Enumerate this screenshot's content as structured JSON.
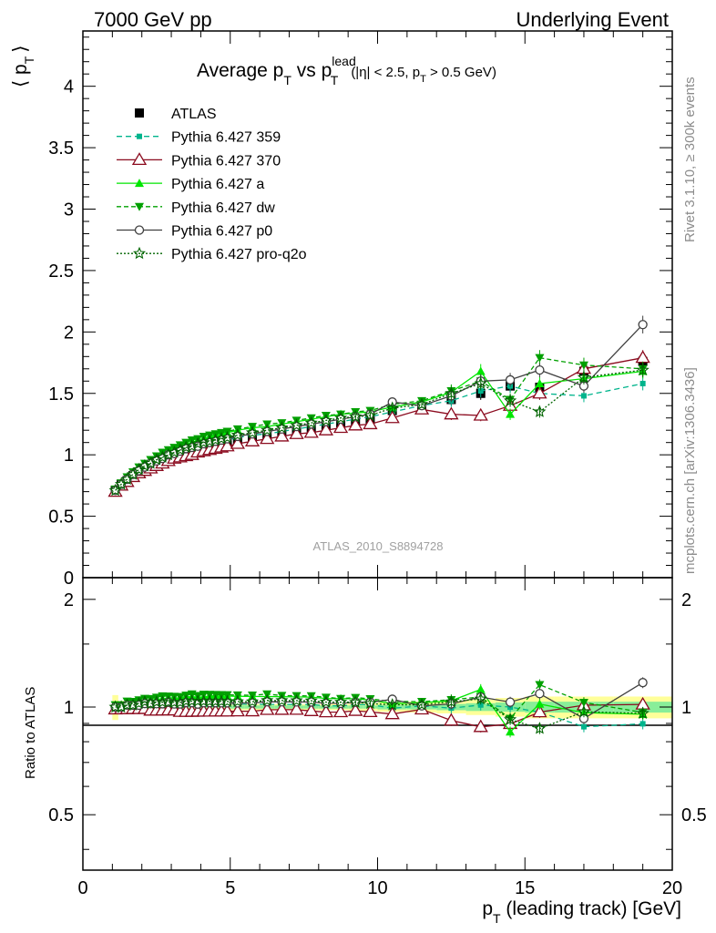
{
  "header": {
    "left": "7000 GeV pp",
    "right": "Underlying Event"
  },
  "plot_title": {
    "main": "Average p",
    "main_sub": "T",
    "vs": " vs p",
    "vs_sup": "lead",
    "vs_sub": "T",
    "cuts_a": "(|η| < 2.5, p",
    "cuts_sub": "T",
    "cuts_b": " > 0.5 GeV)"
  },
  "side_texts": {
    "rivet": "Rivet 3.1.10, ≥ 300k events",
    "mcplots": "mcplots.cern.ch [arXiv:1306.3436]"
  },
  "analysis_label": "ATLAS_2010_S8894728",
  "ylabel_top": {
    "open": "⟨ p",
    "sub": "T",
    "close": "⟩"
  },
  "ylabel_bottom": "Ratio to ATLAS",
  "xlabel": {
    "pre": "p",
    "sub": "T",
    "post": " (leading track) [GeV]"
  },
  "colors": {
    "ATLAS": "#000000",
    "359": "#00b48c",
    "370": "#8b0a1e",
    "a": "#00e600",
    "dw": "#00a000",
    "p0": "#404040",
    "pro-q2o": "#006400",
    "band_outer": "#ffff99",
    "band_inner": "#88ee99"
  },
  "chart_data": [
    {
      "type": "scatter",
      "panel": "main",
      "xlim": [
        0,
        20
      ],
      "ylim": [
        0,
        4.45
      ],
      "x_ticks": [
        0,
        5,
        10,
        15,
        20
      ],
      "x_tick_labels": [
        "0",
        "5",
        "10",
        "15",
        "20"
      ],
      "y_ticks": [
        0,
        0.5,
        1,
        1.5,
        2,
        2.5,
        3,
        3.5,
        4
      ],
      "y_tick_labels": [
        "0",
        "0.5",
        "1",
        "1.5",
        "2",
        "2.5",
        "3",
        "3.5",
        "4"
      ],
      "legend_position": "top-left",
      "x": [
        1.1,
        1.3,
        1.5,
        1.7,
        1.9,
        2.1,
        2.3,
        2.5,
        2.7,
        2.9,
        3.1,
        3.3,
        3.5,
        3.7,
        3.9,
        4.1,
        4.3,
        4.5,
        4.7,
        4.9,
        5.25,
        5.75,
        6.25,
        6.75,
        7.25,
        7.75,
        8.25,
        8.75,
        9.25,
        9.75,
        10.5,
        11.5,
        12.5,
        13.5,
        14.5,
        15.5,
        17.0,
        19.0
      ],
      "series": [
        {
          "name": "ATLAS",
          "marker": "square",
          "values": [
            0.71,
            0.76,
            0.79,
            0.83,
            0.86,
            0.88,
            0.91,
            0.93,
            0.95,
            0.97,
            0.99,
            1.01,
            1.02,
            1.03,
            1.05,
            1.06,
            1.07,
            1.08,
            1.09,
            1.1,
            1.12,
            1.14,
            1.15,
            1.17,
            1.19,
            1.21,
            1.24,
            1.26,
            1.27,
            1.29,
            1.36,
            1.39,
            1.45,
            1.5,
            1.56,
            1.55,
            1.68,
            1.76
          ]
        },
        {
          "name": "Pythia 6.427 359",
          "marker": "small-square",
          "values": [
            0.71,
            0.76,
            0.8,
            0.84,
            0.87,
            0.89,
            0.92,
            0.94,
            0.96,
            0.99,
            1.0,
            1.02,
            1.04,
            1.05,
            1.06,
            1.08,
            1.09,
            1.1,
            1.11,
            1.12,
            1.14,
            1.16,
            1.17,
            1.19,
            1.21,
            1.23,
            1.25,
            1.27,
            1.29,
            1.31,
            1.35,
            1.4,
            1.44,
            1.52,
            1.56,
            1.5,
            1.48,
            1.58
          ]
        },
        {
          "name": "Pythia 6.427 370",
          "marker": "open-triangle",
          "values": [
            0.7,
            0.75,
            0.78,
            0.82,
            0.85,
            0.87,
            0.89,
            0.91,
            0.93,
            0.95,
            0.97,
            0.98,
            0.99,
            1.0,
            1.02,
            1.03,
            1.04,
            1.05,
            1.06,
            1.07,
            1.09,
            1.11,
            1.13,
            1.15,
            1.17,
            1.18,
            1.2,
            1.22,
            1.24,
            1.25,
            1.3,
            1.37,
            1.33,
            1.32,
            1.4,
            1.5,
            1.7,
            1.79
          ]
        },
        {
          "name": "Pythia 6.427 a",
          "marker": "triangle",
          "values": [
            0.72,
            0.77,
            0.81,
            0.85,
            0.89,
            0.92,
            0.95,
            0.98,
            1.0,
            1.03,
            1.05,
            1.07,
            1.09,
            1.1,
            1.12,
            1.13,
            1.15,
            1.16,
            1.17,
            1.18,
            1.2,
            1.22,
            1.23,
            1.25,
            1.27,
            1.29,
            1.31,
            1.33,
            1.34,
            1.35,
            1.39,
            1.43,
            1.51,
            1.68,
            1.33,
            1.58,
            1.62,
            1.68
          ]
        },
        {
          "name": "Pythia 6.427 dw",
          "marker": "down-triangle",
          "values": [
            0.72,
            0.77,
            0.82,
            0.86,
            0.9,
            0.93,
            0.96,
            0.99,
            1.02,
            1.04,
            1.06,
            1.08,
            1.1,
            1.12,
            1.13,
            1.15,
            1.16,
            1.17,
            1.18,
            1.19,
            1.21,
            1.23,
            1.25,
            1.26,
            1.28,
            1.3,
            1.32,
            1.33,
            1.35,
            1.36,
            1.41,
            1.44,
            1.52,
            1.6,
            1.45,
            1.79,
            1.73,
            1.7
          ]
        },
        {
          "name": "Pythia 6.427 p0",
          "marker": "open-circle",
          "values": [
            0.71,
            0.76,
            0.8,
            0.84,
            0.87,
            0.9,
            0.93,
            0.95,
            0.97,
            1.0,
            1.01,
            1.03,
            1.05,
            1.06,
            1.07,
            1.09,
            1.1,
            1.11,
            1.12,
            1.13,
            1.15,
            1.17,
            1.19,
            1.21,
            1.23,
            1.25,
            1.27,
            1.29,
            1.31,
            1.33,
            1.43,
            1.4,
            1.48,
            1.6,
            1.61,
            1.69,
            1.56,
            2.06
          ]
        },
        {
          "name": "Pythia 6.427 pro-q2o",
          "marker": "open-star",
          "values": [
            0.71,
            0.76,
            0.8,
            0.84,
            0.88,
            0.91,
            0.93,
            0.96,
            0.98,
            1.0,
            1.02,
            1.04,
            1.06,
            1.07,
            1.09,
            1.1,
            1.11,
            1.12,
            1.13,
            1.14,
            1.16,
            1.18,
            1.2,
            1.22,
            1.24,
            1.26,
            1.28,
            1.3,
            1.31,
            1.32,
            1.38,
            1.41,
            1.5,
            1.58,
            1.44,
            1.35,
            1.63,
            1.69
          ]
        }
      ]
    },
    {
      "type": "scatter",
      "panel": "ratio",
      "ylabel": "Ratio to ATLAS",
      "xlim": [
        0,
        20
      ],
      "ylim": [
        0.35,
        2.3
      ],
      "y_ticks": [
        0.5,
        1,
        2
      ],
      "y_tick_labels": [
        "0.5",
        "1",
        "2"
      ],
      "band": {
        "x_edges": [
          1.0,
          1.2,
          1.4,
          1.6,
          1.8,
          2.0,
          2.2,
          2.4,
          2.6,
          2.8,
          3.0,
          3.2,
          3.4,
          3.6,
          3.8,
          4.0,
          4.2,
          4.4,
          4.6,
          4.8,
          5.0,
          5.5,
          6.0,
          6.5,
          7.0,
          7.5,
          8.0,
          8.5,
          9.0,
          9.5,
          10.0,
          11.0,
          12.0,
          13.0,
          14.0,
          15.0,
          16.0,
          18.0,
          20.0
        ],
        "outer_halfwidth": [
          0.08,
          0.04,
          0.03,
          0.025,
          0.02,
          0.02,
          0.02,
          0.02,
          0.02,
          0.02,
          0.02,
          0.02,
          0.02,
          0.02,
          0.02,
          0.02,
          0.02,
          0.02,
          0.02,
          0.02,
          0.02,
          0.02,
          0.02,
          0.02,
          0.02,
          0.02,
          0.02,
          0.02,
          0.025,
          0.025,
          0.03,
          0.035,
          0.04,
          0.05,
          0.06,
          0.07,
          0.07,
          0.07
        ],
        "inner_halfwidth": [
          0.03,
          0.015,
          0.01,
          0.01,
          0.01,
          0.01,
          0.01,
          0.01,
          0.01,
          0.01,
          0.01,
          0.01,
          0.01,
          0.01,
          0.01,
          0.01,
          0.01,
          0.01,
          0.01,
          0.01,
          0.01,
          0.01,
          0.01,
          0.01,
          0.01,
          0.01,
          0.01,
          0.01,
          0.01,
          0.01,
          0.015,
          0.015,
          0.02,
          0.025,
          0.03,
          0.035,
          0.035,
          0.035
        ]
      }
    }
  ]
}
